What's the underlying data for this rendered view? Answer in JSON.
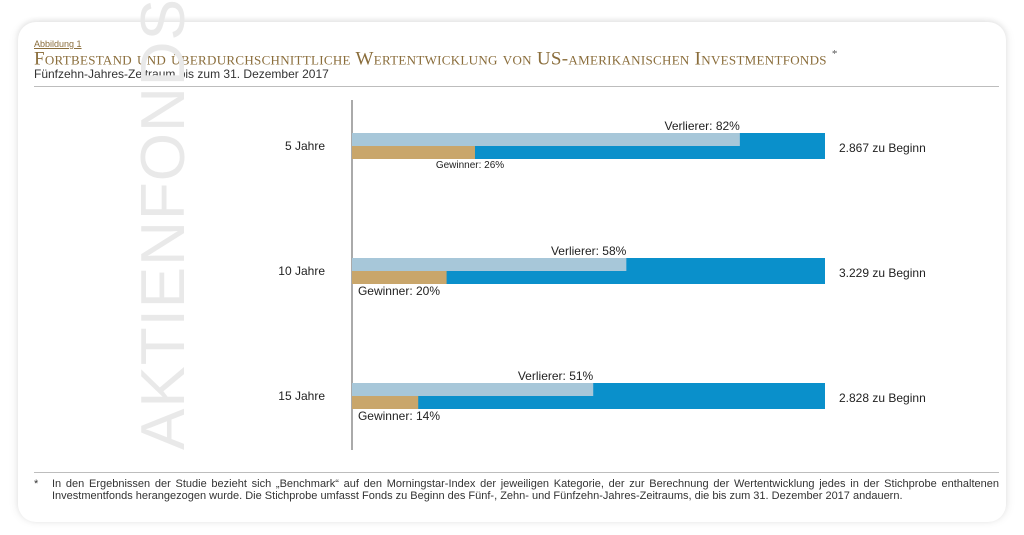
{
  "figure_label": "Abbildung 1",
  "title": "Fortbestand und überdurchschnittliche Wertentwicklung von US-amerikanischen Investmentfonds",
  "title_marker": "*",
  "subtitle": "Fünfzehn-Jahres-Zeitraum bis zum 31. Dezember 2017",
  "watermark": "AKTIENFONDS",
  "colors": {
    "total": "#0a90cb",
    "verlierer": "#a7c7d9",
    "gewinner": "#c9a66b",
    "axis": "#555555"
  },
  "chart_data": {
    "type": "bar",
    "categories": [
      "5 Jahre",
      "10 Jahre",
      "15 Jahre"
    ],
    "series": [
      {
        "name": "Verlierer",
        "values": [
          82,
          58,
          51
        ],
        "labels": [
          "Verlierer: 82%",
          "Verlierer: 58%",
          "Verlierer: 51%"
        ]
      },
      {
        "name": "Gewinner",
        "values": [
          26,
          20,
          14
        ],
        "labels": [
          "Gewinner: 26%",
          "Gewinner: 20%",
          "Gewinner: 14%"
        ]
      }
    ],
    "totals": [
      2867,
      3229,
      2828
    ],
    "total_labels": [
      "2.867 zu Beginn",
      "3.229 zu Beginn",
      "2.828 zu Beginn"
    ],
    "xlim": [
      0,
      100
    ]
  },
  "footnote": {
    "marker": "*",
    "text": "In den Ergebnissen der Studie bezieht sich „Benchmark“ auf den Morningstar-Index der jeweiligen Kategorie, der zur Berechnung der Wertentwicklung jedes in der Stichprobe enthaltenen Investmentfonds herangezogen wurde. Die Stichprobe umfasst Fonds zu Beginn des Fünf-, Zehn- und Fünfzehn-Jahres-Zeitraums, die bis zum 31. Dezember 2017 andauern."
  }
}
